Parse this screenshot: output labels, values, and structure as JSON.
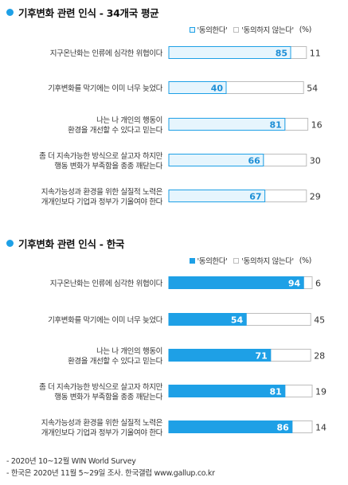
{
  "colors": {
    "bullet": "#1ea0e6",
    "agree_light": "#e6f5fd",
    "agree_light_border": "#1ea0e6",
    "agree_light_text": "#1e8fd6",
    "agree_solid": "#1ea0e6",
    "disagree": "#ffffff",
    "disagree_border": "#bdbdbd"
  },
  "footer": {
    "line1": "- 2020년 10~12월 WIN World Survey",
    "line2": "- 한국은 2020년 11월 5~29일 조사. 한국갤럽 www.gallup.co.kr"
  },
  "chart_data": [
    {
      "type": "bar",
      "orientation": "horizontal",
      "stacked": true,
      "title": "기후변화 관련 인식 - 34개국 평균",
      "legend": {
        "agree": "'동의한다'",
        "disagree": "'동의하지 않는다'",
        "unit": "(%)"
      },
      "categories": [
        [
          "지구온난화는 인류에 심각한 위협이다"
        ],
        [
          "기후변화를 막기에는 이미 너무 늦었다"
        ],
        [
          "나는 나 개인의 행동이",
          "환경을 개선할 수 있다고 믿는다"
        ],
        [
          "좀 더 지속가능한 방식으로 살고자 하지만",
          "행동 변화가 부족함을 종종 깨닫는다"
        ],
        [
          "지속가능성과 환경을 위한 실질적 노력은",
          "개개인보다 기업과 정부가 기울여야 한다"
        ]
      ],
      "series": [
        {
          "name": "'동의한다'",
          "values": [
            85,
            40,
            81,
            66,
            67
          ]
        },
        {
          "name": "'동의하지 않는다'",
          "values": [
            11,
            54,
            16,
            30,
            29
          ]
        }
      ],
      "xlim": [
        0,
        100
      ]
    },
    {
      "type": "bar",
      "orientation": "horizontal",
      "stacked": true,
      "title": "기후변화 관련 인식 - 한국",
      "legend": {
        "agree": "'동의한다'",
        "disagree": "'동의하지 않는다'",
        "unit": "(%)"
      },
      "categories": [
        [
          "지구온난화는 인류에 심각한 위협이다"
        ],
        [
          "기후변화를 막기에는 이미 너무 늦었다"
        ],
        [
          "나는 나 개인의 행동이",
          "환경을 개선할 수 있다고 믿는다"
        ],
        [
          "좀 더 지속가능한 방식으로 살고자 하지만",
          "행동 변화가 부족함을 종종 깨닫는다"
        ],
        [
          "지속가능성과 환경을 위한 실질적 노력은",
          "개개인보다 기업과 정부가 기울여야 한다"
        ]
      ],
      "series": [
        {
          "name": "'동의한다'",
          "values": [
            94,
            54,
            71,
            81,
            86
          ]
        },
        {
          "name": "'동의하지 않는다'",
          "values": [
            6,
            45,
            28,
            19,
            14
          ]
        }
      ],
      "xlim": [
        0,
        100
      ]
    }
  ]
}
